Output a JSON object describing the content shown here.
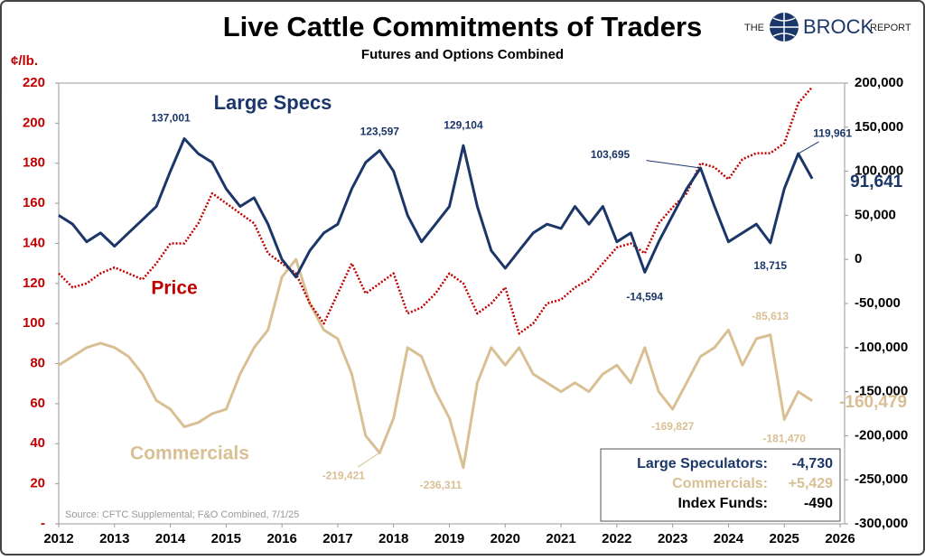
{
  "chart_data": {
    "type": "line",
    "title": "Live Cattle Commitments of Traders",
    "subtitle": "Futures and Options Combined",
    "y_label": "¢/lb.",
    "source": "Source: CFTC Supplemental; F&O Combined, 7/1/25",
    "logo": [
      "THE",
      "BROCK",
      "REPORT"
    ],
    "xlim": [
      2012,
      2026
    ],
    "xticks": [
      2012,
      2013,
      2014,
      2015,
      2016,
      2017,
      2018,
      2019,
      2020,
      2021,
      2022,
      2023,
      2024,
      2025,
      2026
    ],
    "ylim": [
      0,
      220
    ],
    "yticks": [
      {
        "value": 0,
        "label": "-"
      },
      20,
      40,
      60,
      80,
      100,
      120,
      140,
      160,
      180,
      200,
      220
    ],
    "y2lim": [
      -300000,
      200000
    ],
    "y2ticks": [
      {
        "value": -300000,
        "label": "-300,000"
      },
      {
        "value": -250000,
        "label": "-250,000"
      },
      {
        "value": -200000,
        "label": "-200,000"
      },
      {
        "value": -150000,
        "label": "-150,000"
      },
      {
        "value": -100000,
        "label": "-100,000"
      },
      {
        "value": -50000,
        "label": "-50,000"
      },
      0,
      {
        "value": 50000,
        "label": "50,000"
      },
      {
        "value": 100000,
        "label": "100,000"
      },
      {
        "value": 150000,
        "label": "150,000"
      },
      {
        "value": 200000,
        "label": "200,000"
      }
    ],
    "x": [
      2012,
      2012.25,
      2012.5,
      2012.75,
      2013,
      2013.25,
      2013.5,
      2013.75,
      2014,
      2014.25,
      2014.5,
      2014.75,
      2015,
      2015.25,
      2015.5,
      2015.75,
      2016,
      2016.25,
      2016.5,
      2016.75,
      2017,
      2017.25,
      2017.5,
      2017.75,
      2018,
      2018.25,
      2018.5,
      2018.75,
      2019,
      2019.25,
      2019.5,
      2019.75,
      2020,
      2020.25,
      2020.5,
      2020.75,
      2021,
      2021.25,
      2021.5,
      2021.75,
      2022,
      2022.25,
      2022.5,
      2022.75,
      2023,
      2023.25,
      2023.5,
      2023.75,
      2024,
      2024.25,
      2024.5,
      2024.75,
      2025,
      2025.25,
      2025.5
    ],
    "series": [
      {
        "name": "Large Specs",
        "color": "#1b3668",
        "axis": "y2",
        "style": "solid",
        "values": [
          50000,
          40000,
          20000,
          30000,
          15000,
          30000,
          45000,
          60000,
          100000,
          137001,
          120000,
          110000,
          80000,
          60000,
          70000,
          40000,
          0,
          -20000,
          10000,
          30000,
          40000,
          80000,
          110000,
          123597,
          100000,
          50000,
          20000,
          40000,
          60000,
          129104,
          60000,
          10000,
          -10000,
          10000,
          30000,
          40000,
          35000,
          60000,
          40000,
          60000,
          20000,
          30000,
          -14594,
          20000,
          50000,
          80000,
          103695,
          60000,
          20000,
          30000,
          40000,
          18715,
          80000,
          119961,
          91641
        ]
      },
      {
        "name": "Price",
        "color": "#c00000",
        "axis": "y",
        "style": "dotted",
        "values": [
          125,
          118,
          120,
          125,
          128,
          125,
          122,
          130,
          140,
          140,
          150,
          165,
          160,
          155,
          150,
          135,
          130,
          125,
          110,
          100,
          115,
          130,
          115,
          120,
          125,
          105,
          108,
          115,
          125,
          120,
          105,
          110,
          118,
          95,
          100,
          110,
          112,
          118,
          122,
          130,
          138,
          140,
          135,
          150,
          158,
          165,
          180,
          178,
          172,
          182,
          185,
          185,
          190,
          210,
          218
        ]
      },
      {
        "name": "Commercials",
        "color": "#d9c094",
        "axis": "y2",
        "style": "solid",
        "values": [
          -120000,
          -110000,
          -100000,
          -95000,
          -100000,
          -110000,
          -130000,
          -160000,
          -170000,
          -190000,
          -185000,
          -175000,
          -170000,
          -130000,
          -100000,
          -80000,
          -20000,
          0,
          -50000,
          -80000,
          -90000,
          -130000,
          -200000,
          -219421,
          -180000,
          -100000,
          -110000,
          -150000,
          -180000,
          -236311,
          -140000,
          -100000,
          -120000,
          -100000,
          -130000,
          -140000,
          -150000,
          -140000,
          -150000,
          -130000,
          -120000,
          -140000,
          -100000,
          -150000,
          -169827,
          -140000,
          -110000,
          -100000,
          -80000,
          -120000,
          -90000,
          -85613,
          -181470,
          -150000,
          -160479
        ]
      }
    ],
    "annotations": [
      {
        "series": "Large Specs",
        "x": 2014.25,
        "value": 137001,
        "label": "137,001"
      },
      {
        "series": "Large Specs",
        "x": 2017.75,
        "value": 123597,
        "label": "123,597"
      },
      {
        "series": "Large Specs",
        "x": 2019.25,
        "value": 129104,
        "label": "129,104"
      },
      {
        "series": "Large Specs",
        "x": 2023.5,
        "value": 103695,
        "label": "103,695"
      },
      {
        "series": "Large Specs",
        "x": 2022.5,
        "value": -14594,
        "label": "-14,594"
      },
      {
        "series": "Large Specs",
        "x": 2024.75,
        "value": 18715,
        "label": "18,715"
      },
      {
        "series": "Large Specs",
        "x": 2025.25,
        "value": 119961,
        "label": "119,961"
      },
      {
        "series": "Large Specs",
        "x": 2025.5,
        "value": 91641,
        "label": "91,641"
      },
      {
        "series": "Commercials",
        "x": 2017.75,
        "value": -219421,
        "label": "-219,421"
      },
      {
        "series": "Commercials",
        "x": 2019.25,
        "value": -236311,
        "label": "-236,311"
      },
      {
        "series": "Commercials",
        "x": 2023,
        "value": -169827,
        "label": "-169,827"
      },
      {
        "series": "Commercials",
        "x": 2024.75,
        "value": -85613,
        "label": "-85,613"
      },
      {
        "series": "Commercials",
        "x": 2025,
        "value": -181470,
        "label": "-181,470"
      },
      {
        "series": "Commercials",
        "x": 2025.5,
        "value": -160479,
        "label": "-160,479"
      }
    ],
    "changes": [
      {
        "label": "Large Speculators:",
        "value": -4730,
        "value_label": "-4,730",
        "color": "#1b3668"
      },
      {
        "label": "Commercials:",
        "value": 5429,
        "value_label": "+5,429",
        "color": "#d9c094"
      },
      {
        "label": "Index Funds:",
        "value": -490,
        "value_label": "-490",
        "color": "#000000"
      }
    ]
  }
}
